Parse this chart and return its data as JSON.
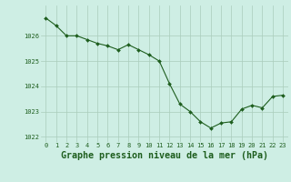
{
  "x": [
    0,
    1,
    2,
    3,
    4,
    5,
    6,
    7,
    8,
    9,
    10,
    11,
    12,
    13,
    14,
    15,
    16,
    17,
    18,
    19,
    20,
    21,
    22,
    23
  ],
  "y": [
    1026.7,
    1026.4,
    1026.0,
    1026.0,
    1025.85,
    1025.7,
    1025.6,
    1025.45,
    1025.65,
    1025.45,
    1025.25,
    1025.0,
    1024.1,
    1023.3,
    1023.0,
    1022.6,
    1022.35,
    1022.55,
    1022.6,
    1023.1,
    1023.25,
    1023.15,
    1023.6,
    1023.65
  ],
  "line_color": "#1e5e1e",
  "marker": "D",
  "marker_size": 2.0,
  "bg_color": "#ceeee4",
  "grid_color": "#aaccbb",
  "title": "Graphe pression niveau de la mer (hPa)",
  "title_color": "#1e5e1e",
  "ylim": [
    1021.8,
    1027.2
  ],
  "yticks": [
    1022,
    1023,
    1024,
    1025,
    1026
  ],
  "xtick_labels": [
    "0",
    "1",
    "2",
    "3",
    "4",
    "5",
    "6",
    "7",
    "8",
    "9",
    "10",
    "11",
    "12",
    "13",
    "14",
    "15",
    "16",
    "17",
    "18",
    "19",
    "20",
    "21",
    "22",
    "23"
  ],
  "tick_color": "#1e5e1e",
  "tick_fontsize": 5.0,
  "title_fontsize": 7.2
}
